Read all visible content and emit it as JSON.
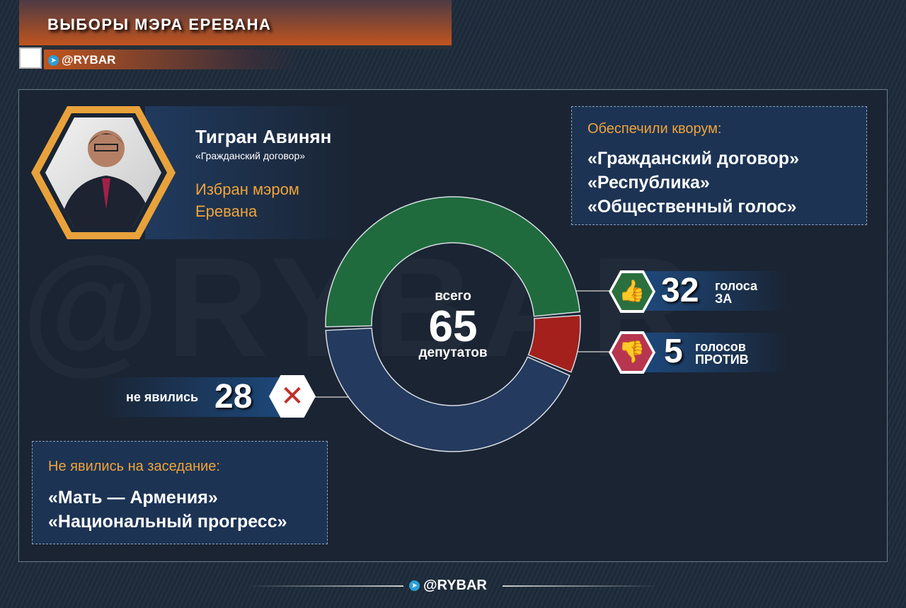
{
  "header": {
    "title": "ВЫБОРЫ МЭРА ЕРЕВАНА",
    "handle": "@RYBAR"
  },
  "candidate": {
    "name": "Тигран Авинян",
    "party": "«Гражданский договор»",
    "status": "Избран мэром Еревана"
  },
  "quorum": {
    "heading": "Обеспечили кворум:",
    "parties": [
      "«Гражданский договор»",
      "«Республика»",
      "«Общественный голос»"
    ]
  },
  "absent_box": {
    "heading": "Не явились на заседание:",
    "parties": [
      "«Мать — Армения»",
      "«Национальный прогресс»"
    ]
  },
  "center": {
    "top": "всего",
    "total": "65",
    "bottom": "депутатов"
  },
  "votes": {
    "for": {
      "value": "32",
      "line1": "голоса",
      "line2": "ЗА",
      "icon": "thumbs-up-icon"
    },
    "against": {
      "value": "5",
      "line1": "голосов",
      "line2": "ПРОТИВ",
      "icon": "thumbs-down-icon"
    },
    "absent": {
      "label": "не явились",
      "value": "28",
      "icon": "cross-icon"
    }
  },
  "chart_data": {
    "type": "pie",
    "donut": true,
    "categories": [
      "голоса ЗА",
      "голосов ПРОТИВ",
      "не явились"
    ],
    "values": [
      32,
      5,
      28
    ],
    "colors": [
      "#1f6b3e",
      "#a3201c",
      "#243a5e"
    ],
    "total": 65
  },
  "footer": {
    "handle": "@RYBAR"
  }
}
